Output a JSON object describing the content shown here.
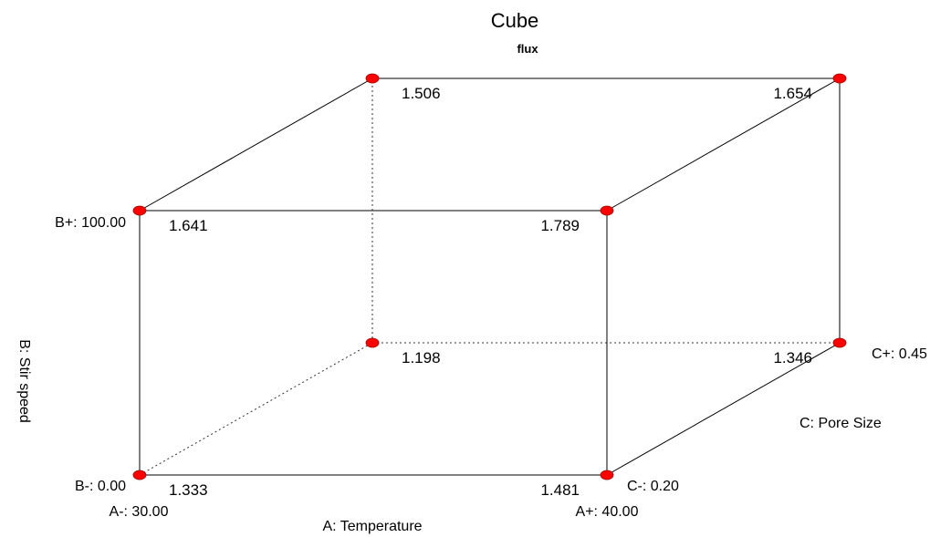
{
  "chart_data": {
    "type": "cube",
    "title": "Cube",
    "subtitle": "flux",
    "factors": {
      "A": {
        "name": "A: Temperature",
        "low_label": "A-: 30.00",
        "high_label": "A+: 40.00",
        "low": 30.0,
        "high": 40.0
      },
      "B": {
        "name": "B: Stir speed",
        "low_label": "B-: 0.00",
        "high_label": "B+: 100.00",
        "low": 0.0,
        "high": 100.0
      },
      "C": {
        "name": "C: Pore Size",
        "low_label": "C-: 0.20",
        "high_label": "C+: 0.45",
        "low": 0.2,
        "high": 0.45
      }
    },
    "corners": [
      {
        "A": "-",
        "B": "-",
        "C": "-",
        "value": "1.333"
      },
      {
        "A": "+",
        "B": "-",
        "C": "-",
        "value": "1.481"
      },
      {
        "A": "-",
        "B": "+",
        "C": "-",
        "value": "1.641"
      },
      {
        "A": "+",
        "B": "+",
        "C": "-",
        "value": "1.789"
      },
      {
        "A": "-",
        "B": "-",
        "C": "+",
        "value": "1.198"
      },
      {
        "A": "+",
        "B": "-",
        "C": "+",
        "value": "1.346"
      },
      {
        "A": "-",
        "B": "+",
        "C": "+",
        "value": "1.506"
      },
      {
        "A": "+",
        "B": "+",
        "C": "+",
        "value": "1.654"
      }
    ],
    "point_color": "#ff0000"
  }
}
